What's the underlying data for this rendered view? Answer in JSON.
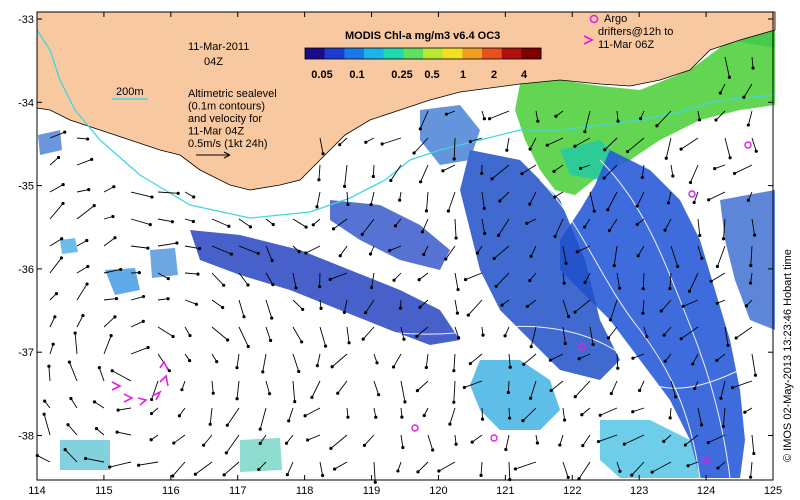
{
  "map": {
    "date_line1": "11-Mar-2011",
    "date_line2": "04Z",
    "colorbar_title": "MODIS Chl-a mg/m3 v6.4 OC3",
    "colorbar_ticks": [
      "0.05",
      "0.1",
      "0.25",
      "0.5",
      "1",
      "2",
      "4"
    ],
    "colorbar_colors": [
      "#1a0a8c",
      "#1c3cd0",
      "#1a78e8",
      "#1ab4e8",
      "#20d8b0",
      "#60e060",
      "#b8e830",
      "#f0e020",
      "#f0a020",
      "#e85020",
      "#b01010",
      "#800000"
    ],
    "contour_label": "200m",
    "sealevel_note_lines": [
      "Altimetric sealevel",
      "(0.1m contours)",
      "and velocity for",
      "11-Mar 04Z",
      "0.5m/s (1kt 24h)"
    ],
    "argo_label": "Argo",
    "drifter_lines": [
      "drifters@12h to",
      "11-Mar 06Z"
    ],
    "credit": "© IMOS 02-May-2013 13:23:46 Hobart time",
    "x_ticks": [
      "114",
      "115",
      "116",
      "117",
      "118",
      "119",
      "120",
      "121",
      "122",
      "123",
      "124",
      "125"
    ],
    "y_ticks": [
      "-33",
      "-34",
      "-35",
      "-36",
      "-37",
      "-38"
    ],
    "colors": {
      "land": "#f8c8a0",
      "contour": "#40d8e0",
      "argo": "#e020e0",
      "drifter": "#e020e0"
    }
  }
}
